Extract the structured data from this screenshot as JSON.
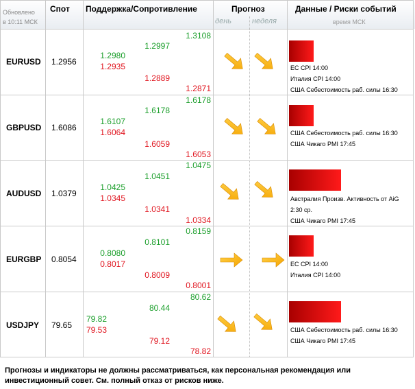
{
  "header": {
    "updated_line1": "Обновлено",
    "updated_line2": "в 10:11 МСК",
    "spot": "Спот",
    "support_resistance": "Поддержка/Сопротивление",
    "forecast": "Прогноз",
    "day": "день",
    "week": "неделя",
    "data_risks": "Данные / Риски событий",
    "msk_time": "время МСК"
  },
  "rows": [
    {
      "pair": "EURUSD",
      "spot": "1.2956",
      "s1": "1.2980",
      "r1": "1.2935",
      "s2": "1.2997",
      "r2": "1.2889",
      "s3": "1.3108",
      "r3": "1.2871",
      "forecast_day": "down-right",
      "forecast_week": "down-right",
      "risk_level": 0.48,
      "events": [
        "ЕС  CPI 14:00",
        "Италия  CPI 14:00",
        "США Себестоимость раб. силы 16:30"
      ]
    },
    {
      "pair": "GBPUSD",
      "spot": "1.6086",
      "s1": "1.6107",
      "r1": "1.6064",
      "s2": "1.6178",
      "r2": "1.6059",
      "s3": "1.6178",
      "r3": "1.6053",
      "forecast_day": "down-right",
      "forecast_week": "down-right",
      "risk_level": 0.48,
      "events": [
        "США Себестоимость раб. силы 16:30",
        "США Чикаго PMI 17:45"
      ]
    },
    {
      "pair": "AUDUSD",
      "spot": "1.0379",
      "s1": "1.0425",
      "r1": "1.0345",
      "s2": "1.0451",
      "r2": "1.0341",
      "s3": "1.0475",
      "r3": "1.0334",
      "forecast_day": "down-right",
      "forecast_week": "down-right",
      "risk_level": 1.0,
      "events": [
        "Австралия Произв. Активность от AiG",
        "2:30 ср.",
        "США Чикаго PMI 17:45"
      ]
    },
    {
      "pair": "EURGBP",
      "spot": "0.8054",
      "s1": "0.8080",
      "r1": "0.8017",
      "s2": "0.8101",
      "r2": "0.8009",
      "s3": "0.8159",
      "r3": "0.8001",
      "forecast_day": "right",
      "forecast_week": "right",
      "risk_level": 0.48,
      "events": [
        "ЕС  CPI 14:00",
        "Италия  CPI 14:00"
      ]
    },
    {
      "pair": "USDJPY",
      "spot": "79.65",
      "s1": "79.82",
      "r1": "79.53",
      "s2": "80.44",
      "r2": "79.12",
      "s3": "80.62",
      "r3": "78.82",
      "forecast_day": "down-right",
      "forecast_week": "down-right",
      "risk_level": 1.0,
      "events": [
        "США Себестоимость раб. силы 16:30",
        "США Чикаго PMI 17:45"
      ]
    }
  ],
  "disclaimer": "Прогнозы и индикаторы не должны рассматриваться, как персональная рекомендация или инвестиционный совет. См. полный отказ от рисков ниже.",
  "colors": {
    "support": "#1a9e2a",
    "resistance": "#e0141e",
    "risk_dark": "#a80000",
    "risk_light": "#ff1a1a",
    "arrow": "#f5a400",
    "grid": "#c9c9c9"
  }
}
